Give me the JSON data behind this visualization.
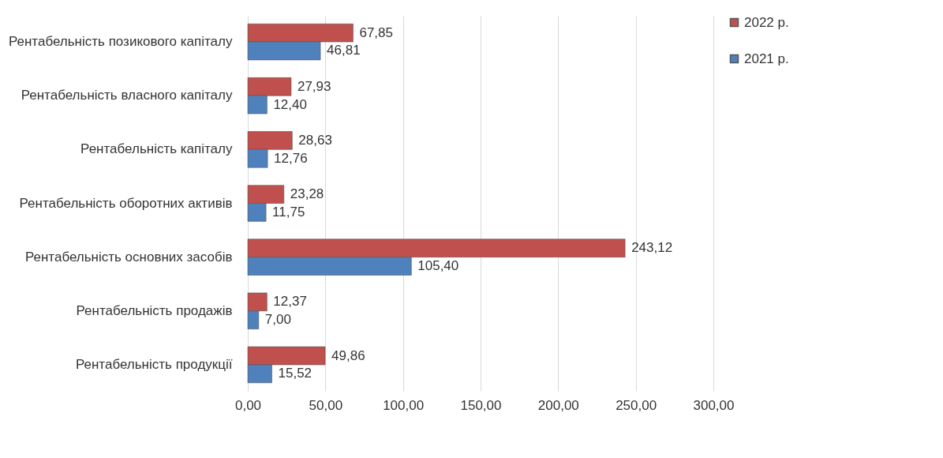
{
  "chart_data": {
    "type": "bar",
    "orientation": "horizontal",
    "categories": [
      "Рентабельність позикового капіталу",
      "Рентабельність власного капіталу",
      "Рентабельність капіталу",
      "Рентабельність оборотних активів",
      "Рентабельність основних засобів",
      "Рентабельність продажів",
      "Рентабельність продукції"
    ],
    "series": [
      {
        "name": "2022 р.",
        "color": "#c0504d",
        "values": [
          67.85,
          27.93,
          28.63,
          23.28,
          243.12,
          12.37,
          49.86
        ],
        "value_labels": [
          "67,85",
          "27,93",
          "28,63",
          "23,28",
          "243,12",
          "12,37",
          "49,86"
        ]
      },
      {
        "name": "2021 р.",
        "color": "#4f81bd",
        "values": [
          46.81,
          12.4,
          12.76,
          11.75,
          105.4,
          7.0,
          15.52
        ],
        "value_labels": [
          "46,81",
          "12,40",
          "12,76",
          "11,75",
          "105,40",
          "7,00",
          "15,52"
        ]
      }
    ],
    "xlim": [
      0,
      300
    ],
    "xticks": [
      {
        "value": 0,
        "label": "0,00"
      },
      {
        "value": 50,
        "label": "50,00"
      },
      {
        "value": 100,
        "label": "100,00"
      },
      {
        "value": 150,
        "label": "150,00"
      },
      {
        "value": 200,
        "label": "200,00"
      },
      {
        "value": 250,
        "label": "250,00"
      },
      {
        "value": 300,
        "label": "300,00"
      }
    ],
    "grid": "x",
    "legend": "right"
  }
}
